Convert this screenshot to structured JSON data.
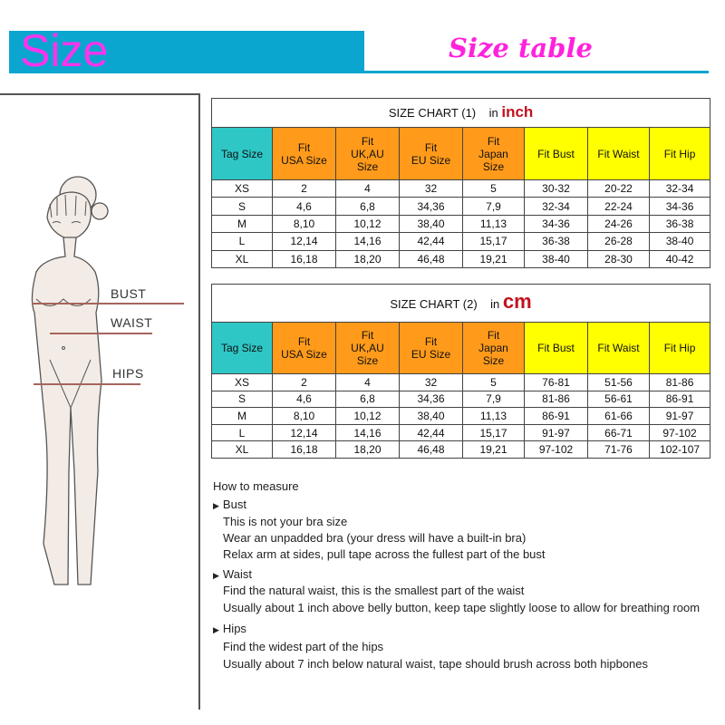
{
  "header": {
    "banner": "Size",
    "title": "Size table",
    "banner_color": "#0aa6cf",
    "text_color": "#ff33ee"
  },
  "figure": {
    "labels": {
      "bust": "BUST",
      "waist": "WAIST",
      "hips": "HIPS"
    }
  },
  "columns": [
    "Tag Size",
    "Fit USA Size",
    "Fit UK,AU Size",
    "Fit EU Size",
    "Fit Japan Size",
    "Fit Bust",
    "Fit Waist",
    "Fit Hip"
  ],
  "header_colors": {
    "tag": "#2fc6c6",
    "fit": "#ff9a1a",
    "measure": "#ffff00"
  },
  "charts": [
    {
      "title": "SIZE CHART (1)",
      "unit_prefix": "in",
      "unit": "inch",
      "rows": [
        [
          "XS",
          "2",
          "4",
          "32",
          "5",
          "30-32",
          "20-22",
          "32-34"
        ],
        [
          "S",
          "4,6",
          "6,8",
          "34,36",
          "7,9",
          "32-34",
          "22-24",
          "34-36"
        ],
        [
          "M",
          "8,10",
          "10,12",
          "38,40",
          "11,13",
          "34-36",
          "24-26",
          "36-38"
        ],
        [
          "L",
          "12,14",
          "14,16",
          "42,44",
          "15,17",
          "36-38",
          "26-28",
          "38-40"
        ],
        [
          "XL",
          "16,18",
          "18,20",
          "46,48",
          "19,21",
          "38-40",
          "28-30",
          "40-42"
        ]
      ]
    },
    {
      "title": "SIZE CHART (2)",
      "unit_prefix": "in",
      "unit": "cm",
      "rows": [
        [
          "XS",
          "2",
          "4",
          "32",
          "5",
          "76-81",
          "51-56",
          "81-86"
        ],
        [
          "S",
          "4,6",
          "6,8",
          "34,36",
          "7,9",
          "81-86",
          "56-61",
          "86-91"
        ],
        [
          "M",
          "8,10",
          "10,12",
          "38,40",
          "11,13",
          "86-91",
          "61-66",
          "91-97"
        ],
        [
          "L",
          "12,14",
          "14,16",
          "42,44",
          "15,17",
          "91-97",
          "66-71",
          "97-102"
        ],
        [
          "XL",
          "16,18",
          "18,20",
          "46,48",
          "19,21",
          "97-102",
          "71-76",
          "102-107"
        ]
      ]
    }
  ],
  "how_to": {
    "title": "How to measure",
    "sections": [
      {
        "heading": "Bust",
        "lines": [
          "This is not your bra size",
          "Wear an unpadded bra (your dress will have a built-in bra)",
          "Relax arm at sides, pull tape across the fullest part of the bust"
        ]
      },
      {
        "heading": "Waist",
        "lines": [
          "Find the natural waist, this is the smallest part of the waist",
          "Usually about 1 inch above belly button, keep tape slightly loose to allow for breathing room"
        ]
      },
      {
        "heading": "Hips",
        "lines": [
          "Find the widest part of the hips",
          "Usually about 7 inch below natural waist, tape should brush across both hipbones"
        ]
      }
    ]
  }
}
